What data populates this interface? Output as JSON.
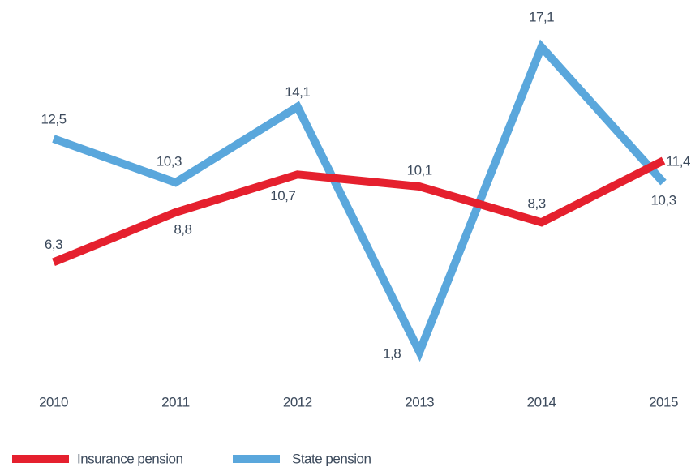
{
  "chart_data": {
    "type": "line",
    "categories": [
      "2010",
      "2011",
      "2012",
      "2013",
      "2014",
      "2015"
    ],
    "series": [
      {
        "name": "Insurance pension",
        "color": "#e5202e",
        "values": [
          6.3,
          8.8,
          10.7,
          10.1,
          8.3,
          11.4
        ],
        "value_labels": [
          "6,3",
          "8,8",
          "10,7",
          "10,1",
          "8,3",
          "11,4"
        ]
      },
      {
        "name": "State pension",
        "color": "#5aa7dc",
        "values": [
          12.5,
          10.3,
          14.1,
          1.8,
          17.1,
          10.3
        ],
        "value_labels": [
          "12,5",
          "10,3",
          "14,1",
          "1,8",
          "17,1",
          "10,3"
        ]
      }
    ],
    "legend": "bottom-left"
  }
}
